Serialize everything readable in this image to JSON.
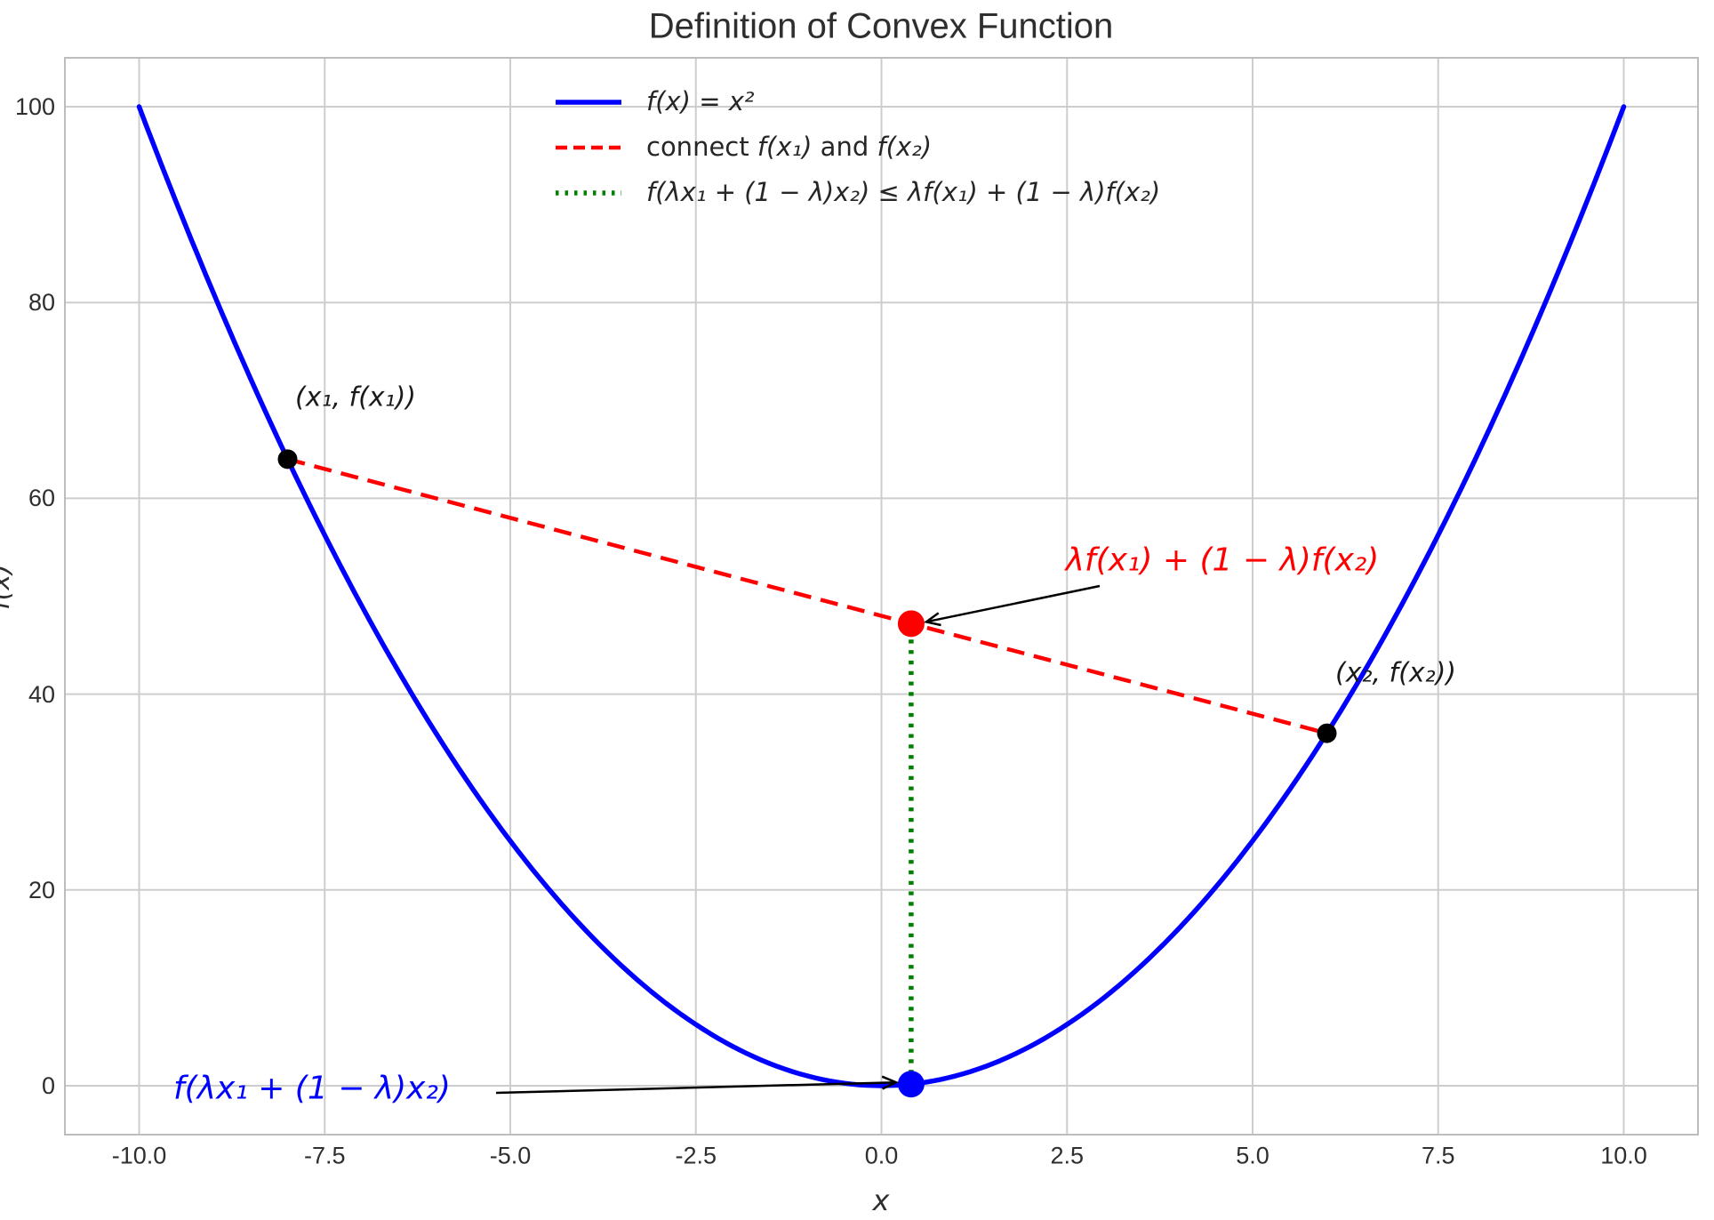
{
  "title": "Definition of Convex Function",
  "chart_data": {
    "type": "line",
    "title": "Definition of Convex Function",
    "xlabel": "x",
    "ylabel": "f(x)",
    "xlim": [
      -11,
      11
    ],
    "ylim": [
      -5,
      105
    ],
    "grid": true,
    "legend_position": "upper center-left",
    "x_ticks": [
      -10,
      -7.5,
      -5,
      -2.5,
      0,
      2.5,
      5,
      7.5,
      10
    ],
    "x_tick_labels": [
      "-10.0",
      "-7.5",
      "-5.0",
      "-2.5",
      "0.0",
      "2.5",
      "5.0",
      "7.5",
      "10.0"
    ],
    "y_ticks": [
      0,
      20,
      40,
      60,
      80,
      100
    ],
    "y_tick_labels": [
      "0",
      "20",
      "40",
      "60",
      "80",
      "100"
    ],
    "x1": -8,
    "x2": 6,
    "lambda": 0.4,
    "series": [
      {
        "name": "f(x) = x²",
        "kind": "function",
        "expr": "x^2",
        "x_min": -10,
        "x_max": 10,
        "color": "#0000ff",
        "style": "solid",
        "width": 5.5
      },
      {
        "name": "connect f(x₁) and f(x₂)",
        "kind": "segment",
        "points": [
          [
            -8,
            64
          ],
          [
            6,
            36
          ]
        ],
        "color": "#ff0000",
        "style": "dashed",
        "width": 4.5
      },
      {
        "name": "f(λx₁ + (1 − λ)x₂) ≤ λf(x₁) + (1 − λ)f(x₂)",
        "kind": "segment",
        "points": [
          [
            0.4,
            0.16
          ],
          [
            0.4,
            47.2
          ]
        ],
        "color": "#008000",
        "style": "dotted",
        "width": 5.5
      }
    ],
    "points": [
      {
        "label": "(x₁, f(x₁))",
        "x": -8,
        "y": 64,
        "color": "#000000",
        "radius": 11
      },
      {
        "label": "(x₂, f(x₂))",
        "x": 6,
        "y": 36,
        "color": "#000000",
        "radius": 11
      },
      {
        "label": "λf(x₁) + (1 − λ)f(x₂)",
        "x": 0.4,
        "y": 47.2,
        "color": "#ff0000",
        "radius": 15
      },
      {
        "label": "f(λx₁ + (1 − λ)x₂)",
        "x": 0.4,
        "y": 0.16,
        "color": "#0000ff",
        "radius": 15
      }
    ]
  },
  "legend": {
    "items": [
      {
        "style": "solid",
        "color": "#0000ff",
        "width": 5.5,
        "segments": [
          {
            "text": "f(x) = x²",
            "italic": true
          }
        ]
      },
      {
        "style": "dashed",
        "color": "#ff0000",
        "width": 4.5,
        "segments": [
          {
            "text": "connect ",
            "italic": false
          },
          {
            "text": "f(x₁)",
            "italic": true
          },
          {
            "text": " and ",
            "italic": false
          },
          {
            "text": "f(x₂)",
            "italic": true
          }
        ]
      },
      {
        "style": "dotted",
        "color": "#008000",
        "width": 5.5,
        "segments": [
          {
            "text": "f(λx₁ + (1 − λ)x₂) ≤ λf(x₁) + (1 − λ)f(x₂)",
            "italic": true
          }
        ]
      }
    ]
  },
  "colors": {
    "curve": "#0000ff",
    "chord": "#ff0000",
    "inequality_gap": "#008000",
    "grid": "#cdcdcd",
    "spine": "#bdbdbd",
    "text": "#262626",
    "arrow": "#000000",
    "background": "#ffffff"
  }
}
